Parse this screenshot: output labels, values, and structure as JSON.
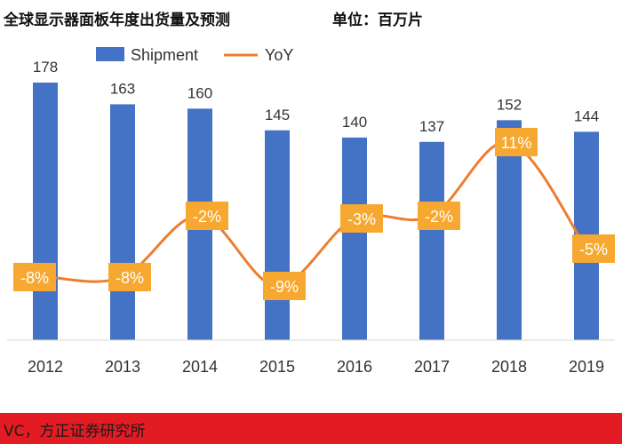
{
  "header": {
    "title": "全球显示器面板年度出货量及预测",
    "unit": "单位：百万片"
  },
  "footer": {
    "source": "VC，方正证券研究所"
  },
  "colors": {
    "bar": "#4472c4",
    "line": "#ed7d31",
    "label_box": "#f7a830",
    "footer": "#e31b23"
  },
  "chart_data": {
    "type": "bar",
    "categories": [
      "2012",
      "2013",
      "2014",
      "2015",
      "2016",
      "2017",
      "2018",
      "2019"
    ],
    "series": [
      {
        "name": "Shipment",
        "type": "bar",
        "values": [
          178,
          163,
          160,
          145,
          140,
          137,
          152,
          144
        ]
      },
      {
        "name": "YoY",
        "type": "line",
        "values": [
          -8,
          -8,
          -2,
          -9,
          -3,
          -2,
          11,
          -5
        ],
        "labels": [
          "-8%",
          "-8%",
          "-2%",
          "-9%",
          "-3%",
          "-2%",
          "11%",
          "-5%"
        ]
      }
    ],
    "legend": "top",
    "grid": false
  }
}
